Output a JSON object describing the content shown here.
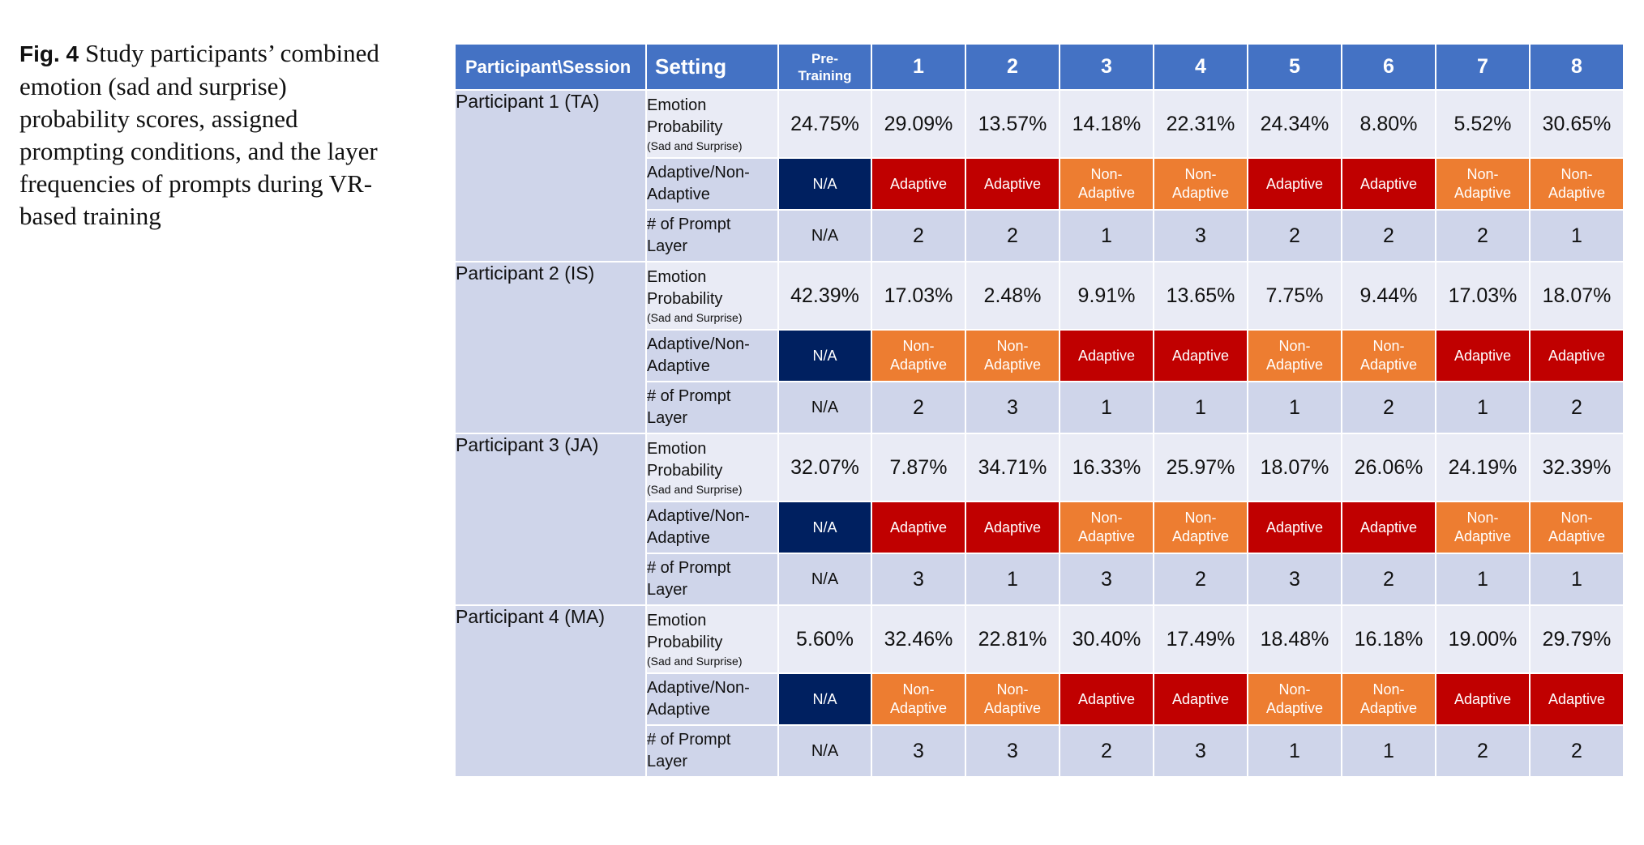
{
  "caption": {
    "label": "Fig. 4",
    "text": "Study participants’ combined emotion (sad and surprise) probability scores, assigned prompting conditions, and the layer frequencies of prompts during VR-based training"
  },
  "table": {
    "headers": {
      "participant": "Participant\\Session",
      "setting": "Setting",
      "pre_line1": "Pre-",
      "pre_line2": "Training",
      "sessions": [
        "1",
        "2",
        "3",
        "4",
        "5",
        "6",
        "7",
        "8"
      ]
    },
    "settings": {
      "emotion_line1": "Emotion",
      "emotion_line2": "Probability",
      "emotion_sub": "(Sad and Surprise)",
      "adaptive_line1": "Adaptive/Non-",
      "adaptive_line2": "Adaptive",
      "prompt_line1": "# of Prompt",
      "prompt_line2": "Layer"
    },
    "condition_labels": {
      "adaptive": "Adaptive",
      "non_line1": "Non-",
      "non_line2": "Adaptive",
      "na": "N/A"
    },
    "colors": {
      "header": "#4472c4",
      "adaptive": "#c00000",
      "non_adaptive": "#ed7d31",
      "na": "#002060",
      "row_light": "#e9ebf5",
      "row_dark": "#cfd5ea"
    },
    "participants": [
      {
        "name": "Participant 1 (TA)",
        "emotion": [
          "24.75%",
          "29.09%",
          "13.57%",
          "14.18%",
          "22.31%",
          "24.34%",
          "8.80%",
          "5.52%",
          "30.65%"
        ],
        "condition": [
          "na",
          "adaptive",
          "adaptive",
          "non",
          "non",
          "adaptive",
          "adaptive",
          "non",
          "non"
        ],
        "prompt": [
          "N/A",
          "2",
          "2",
          "1",
          "3",
          "2",
          "2",
          "2",
          "1"
        ]
      },
      {
        "name": "Participant 2 (IS)",
        "emotion": [
          "42.39%",
          "17.03%",
          "2.48%",
          "9.91%",
          "13.65%",
          "7.75%",
          "9.44%",
          "17.03%",
          "18.07%"
        ],
        "condition": [
          "na",
          "non",
          "non",
          "adaptive",
          "adaptive",
          "non",
          "non",
          "adaptive",
          "adaptive"
        ],
        "prompt": [
          "N/A",
          "2",
          "3",
          "1",
          "1",
          "1",
          "2",
          "1",
          "2"
        ]
      },
      {
        "name": "Participant 3 (JA)",
        "emotion": [
          "32.07%",
          "7.87%",
          "34.71%",
          "16.33%",
          "25.97%",
          "18.07%",
          "26.06%",
          "24.19%",
          "32.39%"
        ],
        "condition": [
          "na",
          "adaptive",
          "adaptive",
          "non",
          "non",
          "adaptive",
          "adaptive",
          "non",
          "non"
        ],
        "prompt": [
          "N/A",
          "3",
          "1",
          "3",
          "2",
          "3",
          "2",
          "1",
          "1"
        ]
      },
      {
        "name": "Participant 4 (MA)",
        "emotion": [
          "5.60%",
          "32.46%",
          "22.81%",
          "30.40%",
          "17.49%",
          "18.48%",
          "16.18%",
          "19.00%",
          "29.79%"
        ],
        "condition": [
          "na",
          "non",
          "non",
          "adaptive",
          "adaptive",
          "non",
          "non",
          "adaptive",
          "adaptive"
        ],
        "prompt": [
          "N/A",
          "3",
          "3",
          "2",
          "3",
          "1",
          "1",
          "2",
          "2"
        ]
      }
    ]
  }
}
